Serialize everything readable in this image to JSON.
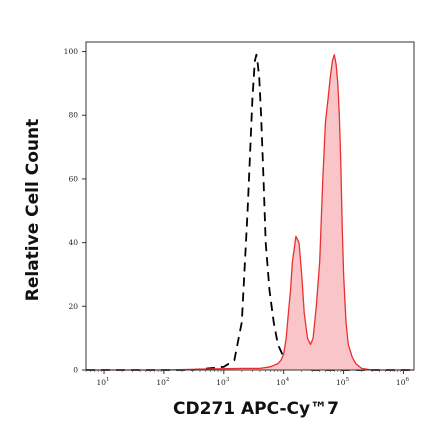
{
  "chart_data": {
    "type": "area",
    "xlabel": "CD271 APC-Cy™7",
    "ylabel": "Relative Cell Count",
    "x_scale": "log",
    "xlim": [
      5,
      1500000
    ],
    "ylim": [
      0,
      103
    ],
    "x_ticks": [
      {
        "value": 10,
        "base": "10",
        "exp": "1"
      },
      {
        "value": 100,
        "base": "10",
        "exp": "2"
      },
      {
        "value": 1000,
        "base": "10",
        "exp": "3"
      },
      {
        "value": 10000,
        "base": "10",
        "exp": "4"
      },
      {
        "value": 100000,
        "base": "10",
        "exp": "5"
      },
      {
        "value": 1000000,
        "base": "10",
        "exp": "6"
      }
    ],
    "y_ticks": [
      {
        "value": 0,
        "label": "0"
      },
      {
        "value": 20,
        "label": "20"
      },
      {
        "value": 40,
        "label": "40"
      },
      {
        "value": 60,
        "label": "60"
      },
      {
        "value": 80,
        "label": "80"
      },
      {
        "value": 100,
        "label": "100"
      }
    ],
    "grid": false,
    "legend": "none",
    "series": [
      {
        "style": "dashed",
        "color": "#000000",
        "x": [
          5,
          300,
          1000,
          1500,
          2000,
          2500,
          3000,
          3300,
          3500,
          3700,
          3900,
          4200,
          4600,
          5000,
          5800,
          6800,
          8000,
          9500,
          11000,
          13000,
          16000,
          30000,
          1500000
        ],
        "y": [
          0,
          0,
          1,
          3,
          15,
          50,
          85,
          97,
          99,
          96,
          92,
          80,
          60,
          40,
          25,
          15,
          8,
          5,
          2,
          1,
          0.5,
          0,
          0
        ]
      },
      {
        "style": "filled",
        "color": "#e8312f",
        "fill": "#f9c5c8",
        "x": [
          5,
          100,
          500,
          2000,
          4000,
          6000,
          8000,
          9000,
          10000,
          11000,
          12000,
          13000,
          14000,
          15000,
          16000,
          18000,
          20000,
          22000,
          25000,
          28000,
          31000,
          35000,
          40000,
          45000,
          50000,
          55000,
          60000,
          65000,
          70000,
          75000,
          80000,
          85000,
          90000,
          95000,
          100000,
          110000,
          120000,
          140000,
          160000,
          200000,
          300000,
          1500000
        ],
        "y": [
          0,
          0,
          0.3,
          0.5,
          0.5,
          1,
          2,
          3,
          5,
          10,
          18,
          25,
          34,
          38,
          42,
          40,
          30,
          18,
          10,
          8,
          10,
          20,
          34,
          60,
          78,
          85,
          92,
          97,
          99,
          96,
          90,
          80,
          65,
          45,
          30,
          15,
          8,
          4,
          2,
          0.5,
          0,
          0
        ]
      }
    ]
  }
}
